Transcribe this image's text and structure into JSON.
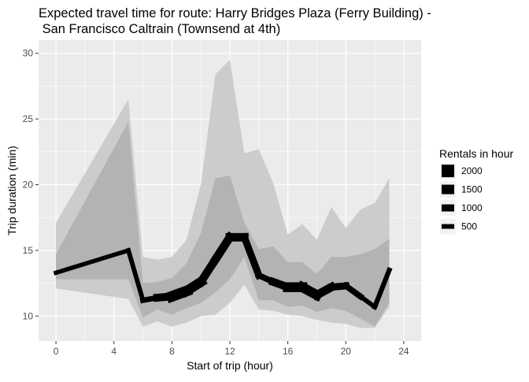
{
  "chart_data": {
    "type": "line",
    "title": "Expected travel time for route: Harry Bridges Plaza (Ferry Building) -",
    "title_line2": " San Francisco Caltrain (Townsend at 4th)",
    "xlabel": "Start of trip (hour)",
    "ylabel": "Trip duration (min)",
    "xlim": [
      -1.2,
      25.2
    ],
    "ylim": [
      8.1,
      31.0
    ],
    "x_ticks": [
      0,
      4,
      8,
      12,
      16,
      20,
      24
    ],
    "y_ticks": [
      10,
      15,
      20,
      25,
      30
    ],
    "grid": true,
    "legend_position": "right",
    "legend": {
      "title": "Rentals in hour",
      "entries": [
        {
          "label": "2000",
          "value": 2000
        },
        {
          "label": "1500",
          "value": 1500
        },
        {
          "label": "1000",
          "value": 1000
        },
        {
          "label": "500",
          "value": 500
        }
      ]
    },
    "x": [
      0,
      5,
      6,
      7,
      8,
      9,
      10,
      11,
      12,
      13,
      14,
      15,
      16,
      17,
      18,
      19,
      20,
      21,
      22,
      23
    ],
    "series": [
      {
        "role": "outer_band",
        "color": "#cccccc",
        "lower": [
          12.1,
          11.3,
          9.2,
          9.6,
          9.2,
          9.5,
          10.0,
          10.1,
          11.0,
          12.4,
          10.5,
          10.4,
          10.1,
          10.0,
          9.7,
          9.5,
          9.4,
          9.1,
          9.1,
          10.7
        ],
        "upper": [
          17.1,
          26.5,
          14.5,
          14.3,
          14.5,
          15.8,
          20.0,
          28.4,
          29.5,
          22.4,
          22.7,
          20.1,
          16.2,
          17.0,
          15.8,
          18.3,
          16.7,
          18.1,
          18.6,
          20.5
        ]
      },
      {
        "role": "inner_band",
        "color": "#b3b3b3",
        "lower": [
          12.8,
          12.8,
          9.9,
          10.5,
          10.1,
          10.6,
          11.0,
          11.8,
          12.8,
          14.5,
          11.2,
          11.2,
          10.7,
          10.8,
          10.3,
          10.6,
          10.4,
          9.8,
          9.2,
          11.0
        ],
        "upper": [
          14.7,
          24.8,
          12.5,
          12.6,
          12.9,
          14.0,
          16.3,
          20.5,
          20.7,
          17.1,
          15.1,
          15.3,
          14.1,
          14.1,
          13.2,
          14.5,
          14.5,
          14.7,
          15.1,
          15.9
        ]
      },
      {
        "role": "median_line",
        "color": "#000000",
        "y": [
          13.3,
          15.0,
          11.2,
          11.4,
          11.5,
          11.9,
          12.6,
          14.3,
          16.0,
          16.0,
          13.1,
          12.6,
          12.2,
          12.2,
          11.6,
          12.2,
          12.3,
          11.5,
          10.7,
          13.5
        ],
        "rentals": [
          500,
          500,
          600,
          800,
          1500,
          1800,
          1200,
          1200,
          1300,
          1200,
          800,
          800,
          1500,
          1500,
          1500,
          1000,
          1000,
          600,
          500,
          700
        ]
      }
    ]
  }
}
